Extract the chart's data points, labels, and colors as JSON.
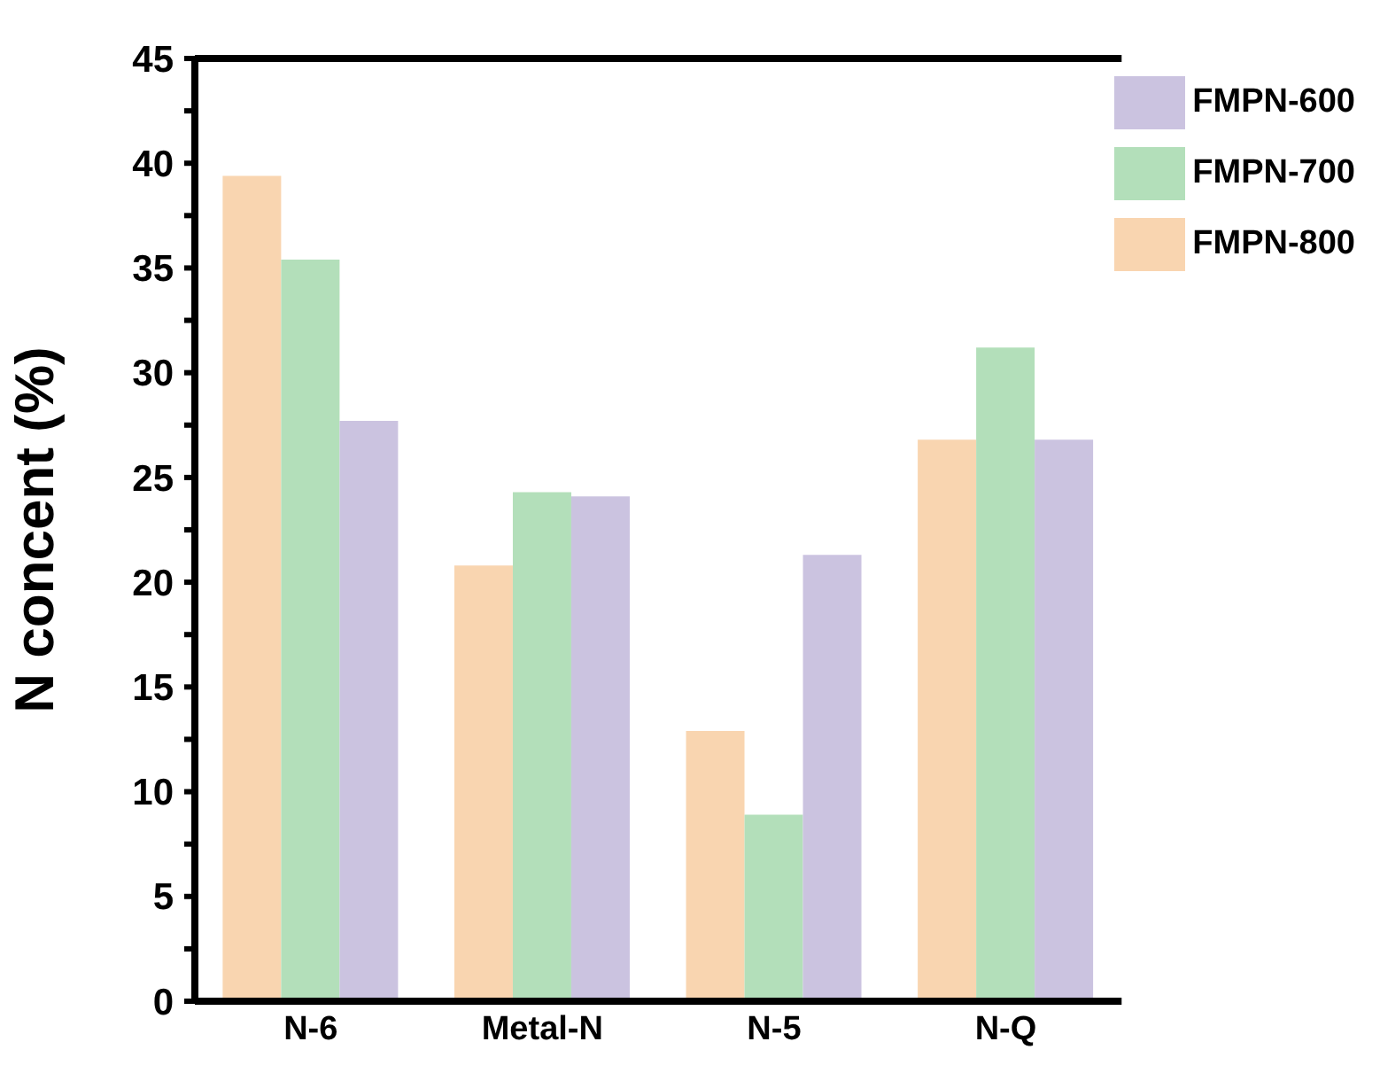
{
  "chart_data": {
    "type": "bar",
    "ylabel": "N concent (%)",
    "categories": [
      "N-6",
      "Metal-N",
      "N-5",
      "N-Q"
    ],
    "series": [
      {
        "name": "FMPN-800",
        "color": "#f9d5b0",
        "values": [
          39.4,
          20.8,
          12.9,
          26.8
        ]
      },
      {
        "name": "FMPN-700",
        "color": "#b3dfba",
        "values": [
          35.4,
          24.3,
          8.9,
          31.2
        ]
      },
      {
        "name": "FMPN-600",
        "color": "#cbc3e0",
        "values": [
          27.7,
          24.1,
          21.3,
          26.8
        ]
      }
    ],
    "ylim": [
      0,
      45
    ],
    "yticks": [
      0,
      {
        "value": 2.5,
        "label": null
      },
      5,
      {
        "value": 7.5,
        "label": null
      },
      10,
      {
        "value": 12.5,
        "label": null
      },
      15,
      {
        "value": 17.5,
        "label": null
      },
      20,
      {
        "value": 22.5,
        "label": null
      },
      25,
      {
        "value": 27.5,
        "label": null
      },
      30,
      {
        "value": 32.5,
        "label": null
      },
      35,
      {
        "value": 37.5,
        "label": null
      },
      40,
      {
        "value": 42.5,
        "label": null
      },
      45
    ],
    "legend": "top right",
    "grid": false
  }
}
